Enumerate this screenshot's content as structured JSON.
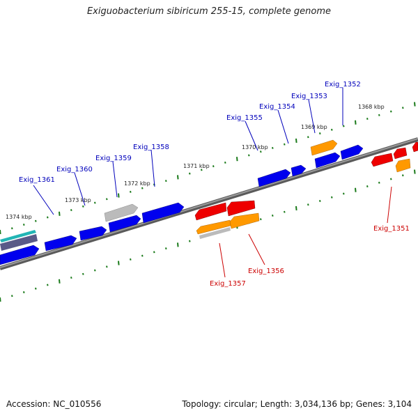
{
  "header": {
    "title": "Exiguobacterium sibiricum 255-15, complete genome"
  },
  "footer": {
    "accession": "Accession: NC_010556",
    "topology": "Topology: circular; Length: 3,034,136 bp; Genes: 3,104"
  },
  "colors": {
    "forward_cds": "#0000ee",
    "reverse_cds": "#ee0000",
    "rna": "#ff9900",
    "pseudo": "#bbbbbb",
    "backbone": "#808080",
    "ticks": "#1a7a1a",
    "label_forward": "#0000bb",
    "label_reverse": "#cc0000"
  },
  "scale": {
    "unit": "kbp",
    "tick_labels": [
      "1374 kbp",
      "1373 kbp",
      "1372 kbp",
      "1371 kbp",
      "1370 kbp",
      "1369 kbp",
      "1368 kbp"
    ]
  },
  "genes": {
    "forward_labels": [
      "Exig_1361",
      "Exig_1360",
      "Exig_1359",
      "Exig_1358",
      "Exig_1355",
      "Exig_1354",
      "Exig_1353",
      "Exig_1352"
    ],
    "reverse_labels": [
      "Exig_1357",
      "Exig_1356",
      "Exig_1351"
    ]
  }
}
